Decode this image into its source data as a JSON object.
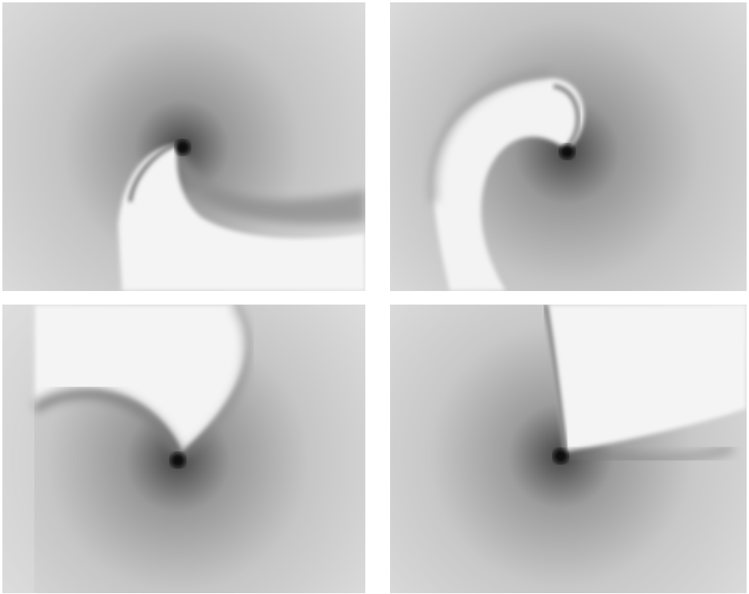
{
  "figure": {
    "panels": [
      {
        "id": "panel-1",
        "tone": "#d6d6d6"
      },
      {
        "id": "panel-2",
        "tone": "#d3d3d3"
      },
      {
        "id": "panel-3",
        "tone": "#d5d5d5"
      },
      {
        "id": "panel-4",
        "tone": "#d7d7d7"
      }
    ]
  }
}
